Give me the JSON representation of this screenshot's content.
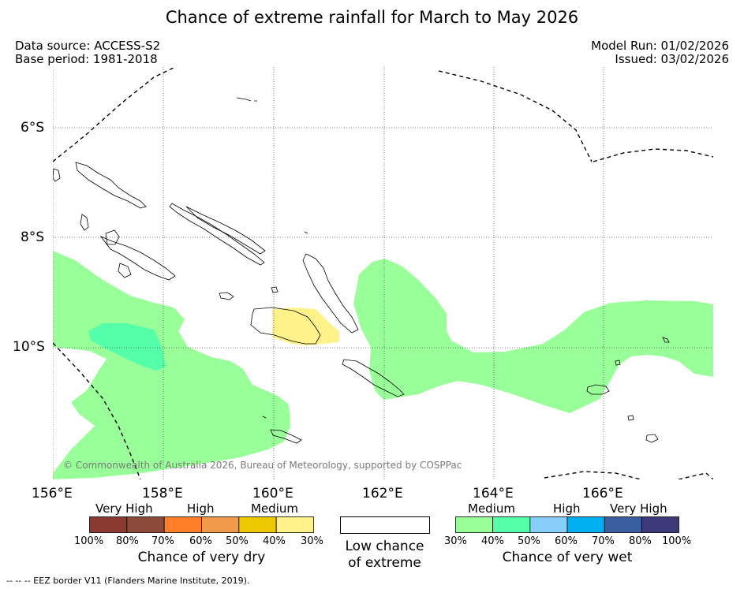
{
  "title": "Chance of extreme rainfall for March to May 2026",
  "meta_left": {
    "data_source": "Data source: ACCESS-S2",
    "base_period": "Base period: 1981-2018"
  },
  "meta_right": {
    "model_run": "Model Run: 01/02/2026",
    "issued": "Issued: 03/02/2026"
  },
  "axes": {
    "lat_labels": [
      "6°S",
      "8°S",
      "10°S"
    ],
    "lon_labels": [
      "156°E",
      "158°E",
      "160°E",
      "162°E",
      "164°E",
      "166°E"
    ]
  },
  "copyright": "© Commonwealth of Australia 2026, Bureau of Meteorology, supported by COSPPac",
  "legend_dry": {
    "categories": [
      "Very High",
      "High",
      "Medium"
    ],
    "colors": [
      "#8b3a32",
      "#8c4a3b",
      "#ff7f2a",
      "#ee9a4a",
      "#eec800",
      "#fff28a"
    ],
    "ticks": [
      "100%",
      "80%",
      "70%",
      "60%",
      "50%",
      "40%",
      "30%"
    ],
    "caption": "Chance of very dry"
  },
  "legend_low": {
    "caption_line1": "Low chance",
    "caption_line2": "of extreme"
  },
  "legend_wet": {
    "categories": [
      "Medium",
      "High",
      "Very High"
    ],
    "colors": [
      "#99ff99",
      "#55ffaa",
      "#87cefa",
      "#00b0f0",
      "#3a5fa0",
      "#3e3a7a"
    ],
    "ticks": [
      "30%",
      "40%",
      "50%",
      "60%",
      "70%",
      "80%",
      "100%"
    ],
    "caption": "Chance of very wet"
  },
  "footer": "--  --  -- EEZ border V11 (Flanders Marine Institute, 2019)."
}
